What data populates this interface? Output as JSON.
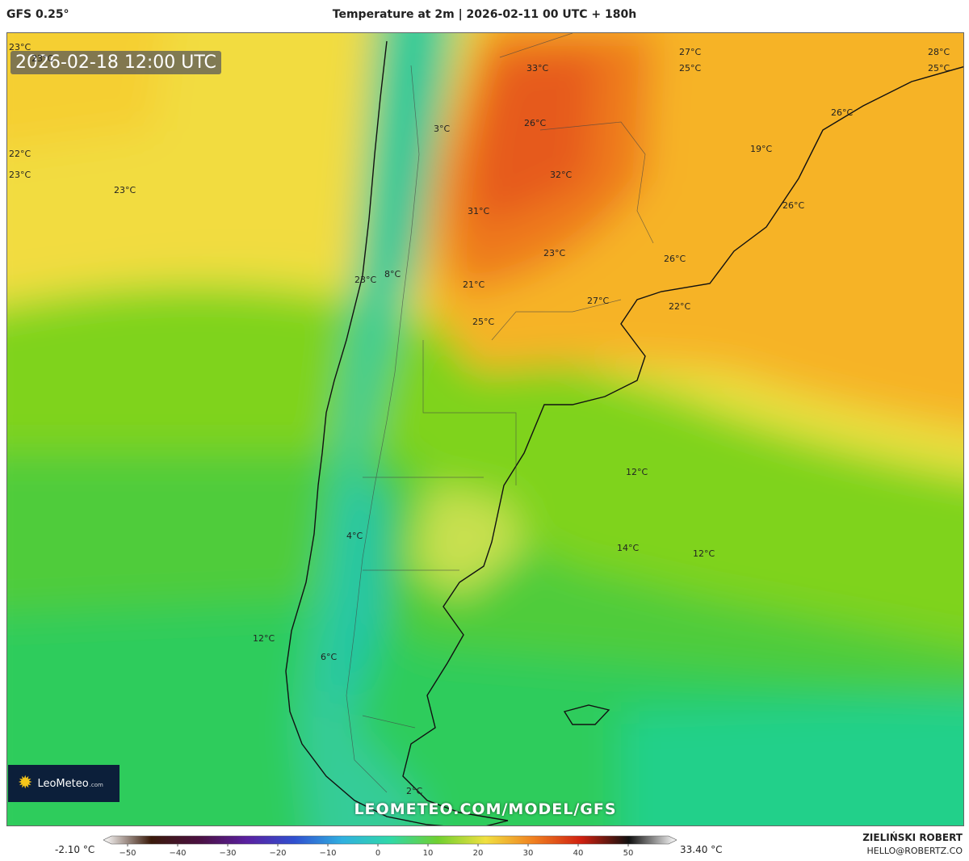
{
  "header": {
    "model": "GFS 0.25°",
    "title": "Temperature at 2m | 2026-02-11 00 UTC + 180h"
  },
  "map": {
    "valid_time": "2026-02-18 12:00 UTC",
    "watermark": "LEOMETEO.COM/MODEL/GFS",
    "logo": {
      "name": "LeoMeteo",
      "suffix": ".com"
    },
    "labels": [
      {
        "text": "23°C"
      },
      {
        "text": "23°C"
      },
      {
        "text": "22°C"
      },
      {
        "text": "23°C"
      },
      {
        "text": "23°C"
      },
      {
        "text": "3°C"
      },
      {
        "text": "33°C"
      },
      {
        "text": "27°C"
      },
      {
        "text": "25°C"
      },
      {
        "text": "28°C"
      },
      {
        "text": "25°C"
      },
      {
        "text": "26°C"
      },
      {
        "text": "26°C"
      },
      {
        "text": "32°C"
      },
      {
        "text": "19°C"
      },
      {
        "text": "31°C"
      },
      {
        "text": "26°C"
      },
      {
        "text": "23°C"
      },
      {
        "text": "8°C"
      },
      {
        "text": "23°C"
      },
      {
        "text": "26°C"
      },
      {
        "text": "21°C"
      },
      {
        "text": "27°C"
      },
      {
        "text": "22°C"
      },
      {
        "text": "25°C"
      },
      {
        "text": "12°C"
      },
      {
        "text": "4°C"
      },
      {
        "text": "14°C"
      },
      {
        "text": "12°C"
      },
      {
        "text": "12°C"
      },
      {
        "text": "6°C"
      },
      {
        "text": "2°C"
      }
    ]
  },
  "colorbar": {
    "min_label": "-2.10 °C",
    "max_label": "33.40 °C",
    "ticks": [
      "−50",
      "−40",
      "−30",
      "−20",
      "−10",
      "0",
      "10",
      "20",
      "30",
      "40",
      "50"
    ],
    "stops": [
      "#ffffff",
      "#3a1a0a",
      "#4a1040",
      "#5a20a0",
      "#3050d0",
      "#30b0e0",
      "#30d8a8",
      "#70d030",
      "#f0e040",
      "#f08020",
      "#d02010",
      "#101010",
      "#ffffff"
    ]
  },
  "footer": {
    "author": "ZIELIŃSKI ROBERT",
    "email": "HELLO@ROBERTZ.CO"
  }
}
